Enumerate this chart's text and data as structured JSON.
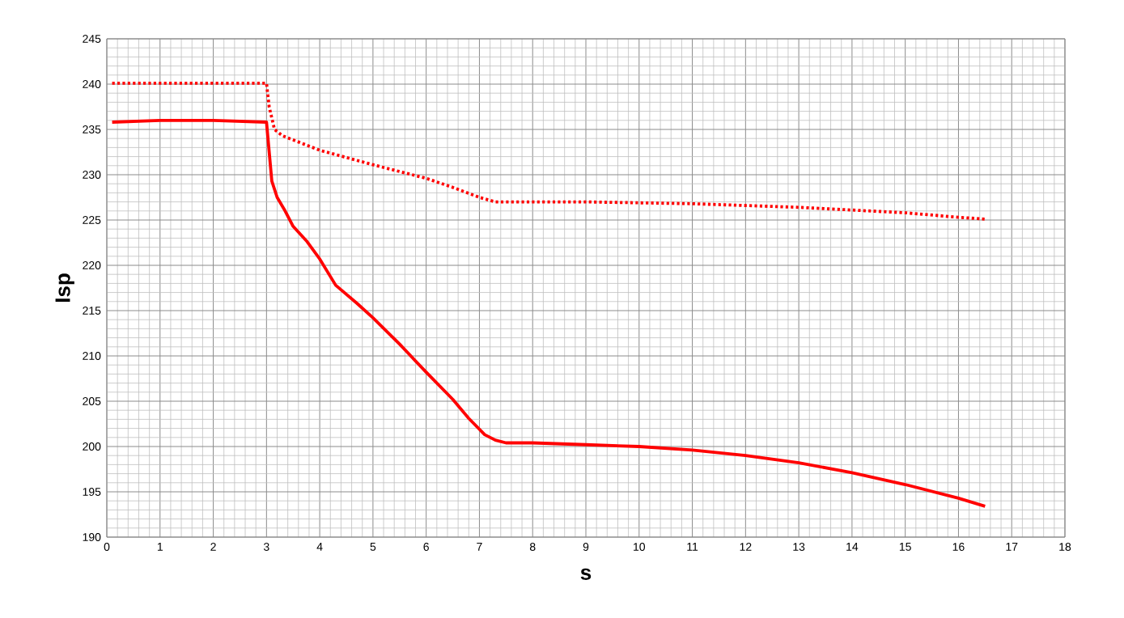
{
  "chart_data": {
    "type": "line",
    "xlabel": "s",
    "ylabel": "Isp",
    "xlim": [
      0,
      18
    ],
    "ylim": [
      190,
      245
    ],
    "xticks": [
      0,
      1,
      2,
      3,
      4,
      5,
      6,
      7,
      8,
      9,
      10,
      11,
      12,
      13,
      14,
      15,
      16,
      17,
      18
    ],
    "yticks": [
      190,
      195,
      200,
      205,
      210,
      215,
      220,
      225,
      230,
      235,
      240,
      245
    ],
    "grid": true,
    "marker": "none",
    "series": [
      {
        "color": "#ff0000",
        "line_style": "solid",
        "x": [
          0.1,
          1,
          2,
          3,
          3.1,
          3.2,
          3.35,
          3.5,
          3.75,
          4,
          4.3,
          4.7,
          5,
          5.5,
          6,
          6.5,
          6.8,
          7.1,
          7.3,
          7.5,
          8,
          9,
          10,
          11,
          12,
          13,
          14,
          15,
          16,
          16.5
        ],
        "values": [
          235.8,
          236,
          236,
          235.8,
          229.3,
          227.5,
          226,
          224.3,
          222.7,
          220.7,
          217.8,
          215.8,
          214.2,
          211.3,
          208.2,
          205.2,
          203.1,
          201.3,
          200.7,
          200.4,
          200.4,
          200.2,
          200,
          199.6,
          199,
          198.2,
          197.1,
          195.8,
          194.3,
          193.4
        ]
      },
      {
        "color": "#ff0000",
        "line_style": "dotted",
        "x": [
          0.1,
          3,
          3.05,
          3.15,
          3.3,
          4,
          5,
          6,
          6.5,
          7,
          7.3,
          8,
          9,
          10,
          11,
          12,
          13,
          14,
          15,
          16,
          16.5
        ],
        "values": [
          240.1,
          240.1,
          237.5,
          235,
          234.3,
          232.7,
          231.1,
          229.6,
          228.6,
          227.5,
          227,
          227,
          227,
          226.9,
          226.8,
          226.6,
          226.4,
          226.1,
          225.8,
          225.3,
          225.1
        ]
      }
    ]
  }
}
